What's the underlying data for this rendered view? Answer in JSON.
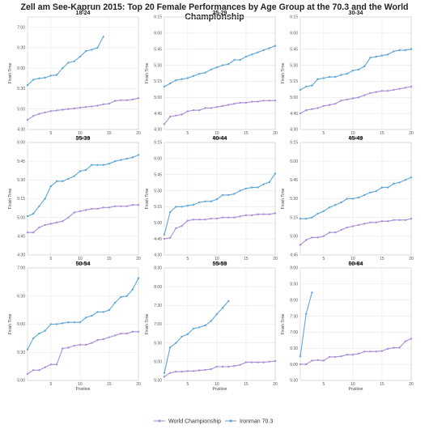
{
  "title": "Zell am See-Kaprun 2015: Top 20 Female Performances by Age Group at the 70.3 and the World Championship",
  "colors": {
    "world": "#a98ed8",
    "ironman": "#5fa7d8"
  },
  "legend": [
    "World Championship",
    "Ironman 70.3"
  ],
  "chart_data": [
    {
      "type": "line",
      "title": "18-24",
      "xlabel": "Position",
      "ylabel": "Finish Time",
      "xticks": [
        5,
        10,
        15,
        20
      ],
      "xlim": [
        1,
        20
      ],
      "yticks": [
        "4:30",
        "5:00",
        "5:30",
        "6:00",
        "6:30",
        "7:00"
      ],
      "ylim_minutes": [
        270,
        435
      ],
      "series": [
        {
          "name": "World Championship",
          "x": [
            1,
            2,
            3,
            4,
            5,
            6,
            7,
            8,
            9,
            10,
            11,
            12,
            13,
            14,
            15,
            16,
            17,
            18,
            19,
            20
          ],
          "y_minutes": [
            284,
            290,
            293,
            295,
            297,
            298,
            299,
            300,
            301,
            302,
            303,
            304,
            305,
            307,
            308,
            312,
            313,
            313,
            314,
            316
          ]
        },
        {
          "name": "Ironman 70.3",
          "x": [
            1,
            2,
            3,
            4,
            5,
            6,
            7,
            8,
            9,
            10,
            11,
            12,
            13,
            14
          ],
          "y_minutes": [
            335,
            343,
            345,
            346,
            349,
            350,
            360,
            368,
            370,
            377,
            385,
            387,
            390,
            406
          ]
        }
      ]
    },
    {
      "type": "line",
      "title": "25-29",
      "xlabel": "Position",
      "ylabel": "Finish Time",
      "xticks": [
        5,
        10,
        15,
        20
      ],
      "xlim": [
        1,
        20
      ],
      "yticks": [
        "4:30",
        "4:45",
        "5:00",
        "5:15",
        "5:30",
        "5:45",
        "6:00",
        "6:15"
      ],
      "ylim_minutes": [
        270,
        375
      ],
      "series": [
        {
          "name": "World Championship",
          "x": [
            1,
            2,
            3,
            4,
            5,
            6,
            7,
            8,
            9,
            10,
            11,
            12,
            13,
            14,
            15,
            16,
            17,
            18,
            19,
            20
          ],
          "y_minutes": [
            275,
            282,
            283,
            284,
            287,
            288,
            288,
            290,
            290,
            291,
            292,
            293,
            294,
            295,
            295,
            296,
            296,
            297,
            297,
            297
          ]
        },
        {
          "name": "Ironman 70.3",
          "x": [
            1,
            2,
            3,
            4,
            5,
            6,
            7,
            8,
            9,
            10,
            11,
            12,
            13,
            14,
            15,
            16,
            17,
            18,
            19,
            20
          ],
          "y_minutes": [
            310,
            313,
            316,
            317,
            318,
            320,
            322,
            323,
            326,
            328,
            330,
            331,
            335,
            335,
            338,
            340,
            342,
            344,
            346,
            348
          ]
        }
      ]
    },
    {
      "type": "line",
      "title": "30-34",
      "xlabel": "Position",
      "ylabel": "Finish Time",
      "xticks": [
        5,
        10,
        15,
        20
      ],
      "xlim": [
        1,
        20
      ],
      "yticks": [
        "4:30",
        "4:45",
        "5:00",
        "5:15",
        "5:30",
        "5:45",
        "6:00",
        "6:15"
      ],
      "ylim_minutes": [
        270,
        375
      ],
      "series": [
        {
          "name": "World Championship",
          "x": [
            1,
            2,
            3,
            4,
            5,
            6,
            7,
            8,
            9,
            10,
            11,
            12,
            13,
            14,
            15,
            16,
            17,
            18,
            19,
            20
          ],
          "y_minutes": [
            285,
            288,
            289,
            290,
            292,
            293,
            294,
            297,
            298,
            299,
            300,
            302,
            304,
            305,
            306,
            306,
            307,
            308,
            309,
            310
          ]
        },
        {
          "name": "Ironman 70.3",
          "x": [
            1,
            2,
            3,
            4,
            5,
            6,
            7,
            8,
            9,
            10,
            11,
            12,
            13,
            14,
            15,
            16,
            17,
            18,
            19,
            20
          ],
          "y_minutes": [
            307,
            310,
            311,
            317,
            318,
            319,
            319,
            321,
            322,
            325,
            326,
            329,
            337,
            338,
            339,
            340,
            343,
            344,
            344,
            345
          ]
        }
      ]
    },
    {
      "type": "line",
      "title": "35-39",
      "xlabel": "Position",
      "ylabel": "Finish Time",
      "xticks": [
        5,
        10,
        15,
        20
      ],
      "xlim": [
        1,
        20
      ],
      "yticks": [
        "4:30",
        "4:45",
        "5:00",
        "5:15",
        "5:30",
        "5:45",
        "6:00"
      ],
      "ylim_minutes": [
        270,
        360
      ],
      "series": [
        {
          "name": "World Championship",
          "x": [
            1,
            2,
            3,
            4,
            5,
            6,
            7,
            8,
            9,
            10,
            11,
            12,
            13,
            14,
            15,
            16,
            17,
            18,
            19,
            20
          ],
          "y_minutes": [
            288,
            288,
            292,
            294,
            295,
            296,
            297,
            300,
            304,
            305,
            306,
            307,
            307,
            308,
            308,
            309,
            309,
            309,
            310,
            310
          ]
        },
        {
          "name": "Ironman 70.3",
          "x": [
            1,
            2,
            3,
            4,
            5,
            6,
            7,
            8,
            9,
            10,
            11,
            12,
            13,
            14,
            15,
            16,
            17,
            18,
            19,
            20
          ],
          "y_minutes": [
            301,
            303,
            309,
            315,
            325,
            329,
            329,
            331,
            333,
            337,
            338,
            342,
            342,
            342,
            343,
            345,
            346,
            347,
            348,
            350
          ]
        }
      ]
    },
    {
      "type": "line",
      "title": "40-44",
      "xlabel": "Position",
      "ylabel": "Finish Time",
      "xticks": [
        5,
        10,
        15,
        20
      ],
      "xlim": [
        1,
        20
      ],
      "yticks": [
        "4:30",
        "4:45",
        "5:00",
        "5:15",
        "5:30",
        "5:45",
        "6:00",
        "6:15"
      ],
      "ylim_minutes": [
        270,
        375
      ],
      "series": [
        {
          "name": "World Championship",
          "x": [
            1,
            2,
            3,
            4,
            5,
            6,
            7,
            8,
            9,
            10,
            11,
            12,
            13,
            14,
            15,
            16,
            17,
            18,
            19,
            20
          ],
          "y_minutes": [
            285,
            286,
            295,
            297,
            302,
            303,
            303,
            303,
            304,
            304,
            305,
            305,
            305,
            306,
            307,
            307,
            308,
            308,
            308,
            309
          ]
        },
        {
          "name": "Ironman 70.3",
          "x": [
            1,
            2,
            3,
            4,
            5,
            6,
            7,
            8,
            9,
            10,
            11,
            12,
            13,
            14,
            15,
            16,
            17,
            18,
            19,
            20
          ],
          "y_minutes": [
            289,
            310,
            315,
            315,
            316,
            317,
            319,
            320,
            320,
            322,
            326,
            326,
            327,
            330,
            332,
            333,
            333,
            336,
            338,
            346
          ]
        }
      ]
    },
    {
      "type": "line",
      "title": "45-49",
      "xlabel": "Position",
      "ylabel": "Finish Time",
      "xticks": [
        5,
        10,
        15,
        20
      ],
      "xlim": [
        1,
        20
      ],
      "yticks": [
        "4:45",
        "5:00",
        "5:15",
        "5:30",
        "5:45",
        "6:00",
        "6:15"
      ],
      "ylim_minutes": [
        285,
        375
      ],
      "series": [
        {
          "name": "World Championship",
          "x": [
            1,
            2,
            3,
            4,
            5,
            6,
            7,
            8,
            9,
            10,
            11,
            12,
            13,
            14,
            15,
            16,
            17,
            18,
            19,
            20
          ],
          "y_minutes": [
            293,
            297,
            299,
            299,
            300,
            303,
            303,
            305,
            307,
            308,
            309,
            310,
            311,
            311,
            312,
            312,
            313,
            313,
            313,
            314
          ]
        },
        {
          "name": "Ironman 70.3",
          "x": [
            1,
            2,
            3,
            4,
            5,
            6,
            7,
            8,
            9,
            10,
            11,
            12,
            13,
            14,
            15,
            16,
            17,
            18,
            19,
            20
          ],
          "y_minutes": [
            314,
            314,
            315,
            318,
            320,
            323,
            325,
            327,
            330,
            330,
            331,
            333,
            335,
            336,
            339,
            339,
            342,
            343,
            345,
            347
          ]
        }
      ]
    },
    {
      "type": "line",
      "title": "50-54",
      "xlabel": "Position",
      "ylabel": "Finish Time",
      "xticks": [
        5,
        10,
        15,
        20
      ],
      "xlim": [
        1,
        20
      ],
      "yticks": [
        "5:00",
        "5:30",
        "6:00",
        "6:30",
        "7:00"
      ],
      "ylim_minutes": [
        300,
        420
      ],
      "series": [
        {
          "name": "World Championship",
          "x": [
            1,
            2,
            3,
            4,
            5,
            6,
            7,
            8,
            9,
            10,
            11,
            12,
            13,
            14,
            15,
            16,
            17,
            18,
            19,
            20
          ],
          "y_minutes": [
            307,
            311,
            311,
            314,
            317,
            317,
            334,
            335,
            337,
            338,
            338,
            340,
            343,
            344,
            346,
            348,
            350,
            350,
            352,
            352
          ]
        },
        {
          "name": "Ironman 70.3",
          "x": [
            1,
            2,
            3,
            4,
            5,
            6,
            7,
            8,
            9,
            10,
            11,
            12,
            13,
            14,
            15,
            16,
            17,
            18,
            19,
            20
          ],
          "y_minutes": [
            333,
            345,
            350,
            353,
            360,
            360,
            361,
            362,
            362,
            362,
            367,
            369,
            373,
            373,
            375,
            383,
            389,
            390,
            397,
            409
          ]
        }
      ]
    },
    {
      "type": "line",
      "title": "55-59",
      "xlabel": "Position",
      "ylabel": "Finish Time",
      "xticks": [
        5,
        10,
        15,
        20
      ],
      "xlim": [
        1,
        20
      ],
      "yticks": [
        "5:30",
        "6:00",
        "6:30",
        "7:00",
        "7:30",
        "8:00",
        "8:30"
      ],
      "ylim_minutes": [
        330,
        510
      ],
      "series": [
        {
          "name": "World Championship",
          "x": [
            1,
            2,
            3,
            4,
            5,
            6,
            7,
            8,
            9,
            10,
            11,
            12,
            13,
            14,
            15,
            16,
            17,
            18,
            19,
            20
          ],
          "y_minutes": [
            336,
            342,
            344,
            344,
            345,
            345,
            346,
            347,
            348,
            352,
            352,
            352,
            353,
            355,
            359,
            359,
            359,
            359,
            360,
            361
          ]
        },
        {
          "name": "Ironman 70.3",
          "x": [
            1,
            2,
            3,
            4,
            5,
            6,
            7,
            8,
            9,
            10,
            11,
            12
          ],
          "y_minutes": [
            342,
            383,
            390,
            400,
            404,
            413,
            415,
            418,
            425,
            436,
            446,
            457
          ]
        }
      ]
    },
    {
      "type": "line",
      "title": "60-64",
      "xlabel": "Position",
      "ylabel": "Finish Time",
      "xticks": [
        5,
        10,
        15,
        20
      ],
      "xlim": [
        1,
        20
      ],
      "yticks": [
        "5:30",
        "6:00",
        "6:30",
        "7:00",
        "7:30",
        "8:00",
        "8:30",
        "9:00"
      ],
      "ylim_minutes": [
        330,
        540
      ],
      "series": [
        {
          "name": "World Championship",
          "x": [
            1,
            2,
            3,
            4,
            5,
            6,
            7,
            8,
            9,
            10,
            11,
            12,
            13,
            14,
            15,
            16,
            17,
            18,
            19,
            20
          ],
          "y_minutes": [
            360,
            360,
            367,
            368,
            367,
            374,
            374,
            375,
            378,
            378,
            380,
            384,
            384,
            384,
            385,
            389,
            391,
            391,
            403,
            408
          ]
        },
        {
          "name": "Ironman 70.3",
          "x": [
            1,
            2,
            3
          ],
          "y_minutes": [
            375,
            454,
            494
          ]
        }
      ]
    }
  ]
}
